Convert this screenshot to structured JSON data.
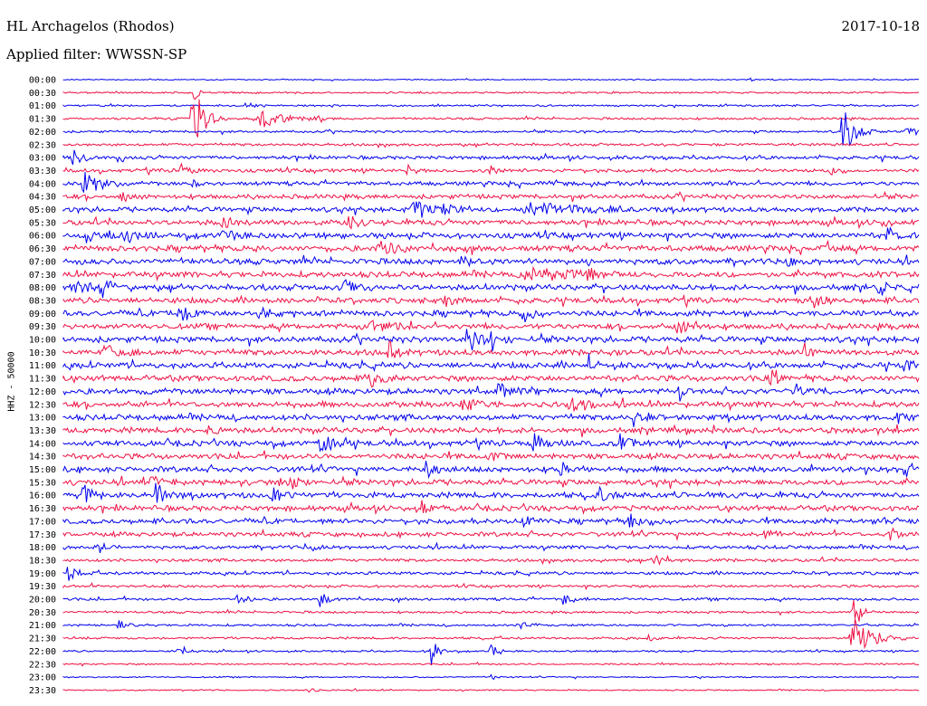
{
  "header": {
    "station": "HL Archagelos (Rhodos)",
    "date": "2017-10-18",
    "filter": "Applied filter: WWSSN-SP"
  },
  "chart_data": {
    "type": "line",
    "title": "HL Archagelos (Rhodos)",
    "subtitle": "Applied filter: WWSSN-SP",
    "ylabel": "HHZ - 50000",
    "colors": [
      "#0000ee",
      "#ee1144"
    ],
    "grid": false,
    "row_labels": [
      "00:00",
      "00:30",
      "01:00",
      "01:30",
      "02:00",
      "02:30",
      "03:00",
      "03:30",
      "04:00",
      "04:30",
      "05:00",
      "05:30",
      "06:00",
      "06:30",
      "07:00",
      "07:30",
      "08:00",
      "08:30",
      "09:00",
      "09:30",
      "10:00",
      "10:30",
      "11:00",
      "11:30",
      "12:00",
      "12:30",
      "13:00",
      "13:30",
      "14:00",
      "14:30",
      "15:00",
      "15:30",
      "16:00",
      "16:30",
      "17:00",
      "17:30",
      "18:00",
      "18:30",
      "19:00",
      "19:30",
      "20:00",
      "20:30",
      "21:00",
      "21:30",
      "22:00",
      "22:30",
      "23:00",
      "23:30"
    ],
    "noise": [
      0.5,
      0.8,
      0.8,
      1.0,
      1.0,
      1.2,
      1.6,
      1.6,
      1.8,
      2.0,
      2.2,
      2.4,
      2.6,
      2.6,
      2.6,
      2.6,
      2.6,
      2.5,
      2.5,
      2.5,
      2.6,
      2.6,
      2.6,
      2.6,
      2.6,
      2.6,
      2.6,
      2.5,
      2.5,
      2.5,
      2.5,
      2.5,
      2.5,
      2.4,
      2.2,
      2.0,
      1.6,
      1.4,
      1.4,
      1.2,
      1.2,
      1.0,
      1.0,
      1.0,
      0.8,
      0.8,
      0.6,
      0.6
    ],
    "events": [
      {
        "row": 0,
        "x": 827,
        "amp": 3,
        "w": 4
      },
      {
        "row": 1,
        "x": 214,
        "amp": 20,
        "w": 3
      },
      {
        "row": 2,
        "x": 272,
        "amp": 5,
        "w": 6
      },
      {
        "row": 3,
        "x": 213,
        "amp": 40,
        "w": 10
      },
      {
        "row": 3,
        "x": 288,
        "amp": 15,
        "w": 18
      },
      {
        "row": 3,
        "x": 355,
        "amp": 4,
        "w": 6
      },
      {
        "row": 4,
        "x": 930,
        "amp": 35,
        "w": 10
      },
      {
        "row": 4,
        "x": 1000,
        "amp": 6,
        "w": 8
      },
      {
        "row": 6,
        "x": 80,
        "amp": 10,
        "w": 8
      },
      {
        "row": 6,
        "x": 130,
        "amp": 6,
        "w": 6
      },
      {
        "row": 7,
        "x": 200,
        "amp": 8,
        "w": 8
      },
      {
        "row": 7,
        "x": 450,
        "amp": 6,
        "w": 6
      },
      {
        "row": 7,
        "x": 540,
        "amp": 8,
        "w": 6
      },
      {
        "row": 7,
        "x": 917,
        "amp": 10,
        "w": 6
      },
      {
        "row": 8,
        "x": 93,
        "amp": 20,
        "w": 12
      },
      {
        "row": 8,
        "x": 212,
        "amp": 8,
        "w": 6
      },
      {
        "row": 9,
        "x": 135,
        "amp": 6,
        "w": 8
      },
      {
        "row": 10,
        "x": 455,
        "amp": 12,
        "w": 15
      },
      {
        "row": 10,
        "x": 490,
        "amp": 10,
        "w": 8
      },
      {
        "row": 10,
        "x": 580,
        "amp": 10,
        "w": 40
      },
      {
        "row": 11,
        "x": 245,
        "amp": 15,
        "w": 6
      },
      {
        "row": 11,
        "x": 385,
        "amp": 10,
        "w": 6
      },
      {
        "row": 11,
        "x": 975,
        "amp": 8,
        "w": 6
      },
      {
        "row": 12,
        "x": 95,
        "amp": 12,
        "w": 10
      },
      {
        "row": 12,
        "x": 138,
        "amp": 12,
        "w": 10
      },
      {
        "row": 12,
        "x": 245,
        "amp": 10,
        "w": 6
      },
      {
        "row": 12,
        "x": 980,
        "amp": 10,
        "w": 6
      },
      {
        "row": 13,
        "x": 420,
        "amp": 12,
        "w": 12
      },
      {
        "row": 13,
        "x": 910,
        "amp": 10,
        "w": 6
      },
      {
        "row": 14,
        "x": 510,
        "amp": 10,
        "w": 6
      },
      {
        "row": 14,
        "x": 870,
        "amp": 8,
        "w": 8
      },
      {
        "row": 15,
        "x": 580,
        "amp": 8,
        "w": 40
      },
      {
        "row": 15,
        "x": 650,
        "amp": 12,
        "w": 6
      },
      {
        "row": 16,
        "x": 80,
        "amp": 10,
        "w": 10
      },
      {
        "row": 16,
        "x": 112,
        "amp": 12,
        "w": 8
      },
      {
        "row": 16,
        "x": 380,
        "amp": 10,
        "w": 10
      },
      {
        "row": 16,
        "x": 970,
        "amp": 12,
        "w": 6
      },
      {
        "row": 17,
        "x": 492,
        "amp": 10,
        "w": 8
      },
      {
        "row": 17,
        "x": 900,
        "amp": 8,
        "w": 8
      },
      {
        "row": 18,
        "x": 198,
        "amp": 15,
        "w": 8
      },
      {
        "row": 18,
        "x": 285,
        "amp": 12,
        "w": 8
      },
      {
        "row": 18,
        "x": 578,
        "amp": 12,
        "w": 8
      },
      {
        "row": 19,
        "x": 410,
        "amp": 8,
        "w": 15
      },
      {
        "row": 19,
        "x": 748,
        "amp": 10,
        "w": 8
      },
      {
        "row": 20,
        "x": 516,
        "amp": 22,
        "w": 8
      },
      {
        "row": 20,
        "x": 542,
        "amp": 18,
        "w": 8
      },
      {
        "row": 21,
        "x": 115,
        "amp": 10,
        "w": 10
      },
      {
        "row": 21,
        "x": 430,
        "amp": 12,
        "w": 8
      },
      {
        "row": 21,
        "x": 888,
        "amp": 12,
        "w": 6
      },
      {
        "row": 22,
        "x": 650,
        "amp": 18,
        "w": 6
      },
      {
        "row": 22,
        "x": 997,
        "amp": 10,
        "w": 6
      },
      {
        "row": 23,
        "x": 410,
        "amp": 10,
        "w": 10
      },
      {
        "row": 23,
        "x": 850,
        "amp": 10,
        "w": 8
      },
      {
        "row": 24,
        "x": 550,
        "amp": 10,
        "w": 10
      },
      {
        "row": 24,
        "x": 750,
        "amp": 12,
        "w": 6
      },
      {
        "row": 24,
        "x": 880,
        "amp": 10,
        "w": 8
      },
      {
        "row": 25,
        "x": 510,
        "amp": 12,
        "w": 10
      },
      {
        "row": 25,
        "x": 630,
        "amp": 12,
        "w": 12
      },
      {
        "row": 26,
        "x": 700,
        "amp": 12,
        "w": 6
      },
      {
        "row": 26,
        "x": 990,
        "amp": 10,
        "w": 6
      },
      {
        "row": 27,
        "x": 230,
        "amp": 8,
        "w": 8
      },
      {
        "row": 28,
        "x": 352,
        "amp": 14,
        "w": 10
      },
      {
        "row": 28,
        "x": 590,
        "amp": 12,
        "w": 10
      },
      {
        "row": 28,
        "x": 685,
        "amp": 12,
        "w": 8
      },
      {
        "row": 29,
        "x": 540,
        "amp": 8,
        "w": 8
      },
      {
        "row": 30,
        "x": 470,
        "amp": 10,
        "w": 8
      },
      {
        "row": 30,
        "x": 620,
        "amp": 10,
        "w": 8
      },
      {
        "row": 30,
        "x": 1000,
        "amp": 10,
        "w": 8
      },
      {
        "row": 31,
        "x": 160,
        "amp": 10,
        "w": 10
      },
      {
        "row": 31,
        "x": 320,
        "amp": 10,
        "w": 8
      },
      {
        "row": 32,
        "x": 92,
        "amp": 14,
        "w": 8
      },
      {
        "row": 32,
        "x": 172,
        "amp": 14,
        "w": 8
      },
      {
        "row": 32,
        "x": 300,
        "amp": 10,
        "w": 8
      },
      {
        "row": 32,
        "x": 662,
        "amp": 12,
        "w": 6
      },
      {
        "row": 33,
        "x": 465,
        "amp": 8,
        "w": 8
      },
      {
        "row": 34,
        "x": 578,
        "amp": 8,
        "w": 8
      },
      {
        "row": 34,
        "x": 695,
        "amp": 10,
        "w": 14
      },
      {
        "row": 34,
        "x": 975,
        "amp": 10,
        "w": 6
      },
      {
        "row": 35,
        "x": 845,
        "amp": 10,
        "w": 6
      },
      {
        "row": 35,
        "x": 983,
        "amp": 10,
        "w": 6
      },
      {
        "row": 36,
        "x": 108,
        "amp": 12,
        "w": 6
      },
      {
        "row": 36,
        "x": 338,
        "amp": 10,
        "w": 6
      },
      {
        "row": 37,
        "x": 722,
        "amp": 12,
        "w": 6
      },
      {
        "row": 38,
        "x": 75,
        "amp": 14,
        "w": 6
      },
      {
        "row": 40,
        "x": 262,
        "amp": 12,
        "w": 6
      },
      {
        "row": 40,
        "x": 353,
        "amp": 14,
        "w": 6
      },
      {
        "row": 40,
        "x": 622,
        "amp": 8,
        "w": 8
      },
      {
        "row": 41,
        "x": 942,
        "amp": 25,
        "w": 6
      },
      {
        "row": 42,
        "x": 130,
        "amp": 10,
        "w": 6
      },
      {
        "row": 42,
        "x": 575,
        "amp": 6,
        "w": 8
      },
      {
        "row": 43,
        "x": 942,
        "amp": 30,
        "w": 14
      },
      {
        "row": 43,
        "x": 716,
        "amp": 8,
        "w": 6
      },
      {
        "row": 44,
        "x": 197,
        "amp": 12,
        "w": 6
      },
      {
        "row": 44,
        "x": 476,
        "amp": 16,
        "w": 6
      },
      {
        "row": 44,
        "x": 541,
        "amp": 14,
        "w": 6
      },
      {
        "row": 46,
        "x": 541,
        "amp": 6,
        "w": 4
      },
      {
        "row": 47,
        "x": 340,
        "amp": 4,
        "w": 8
      }
    ]
  }
}
